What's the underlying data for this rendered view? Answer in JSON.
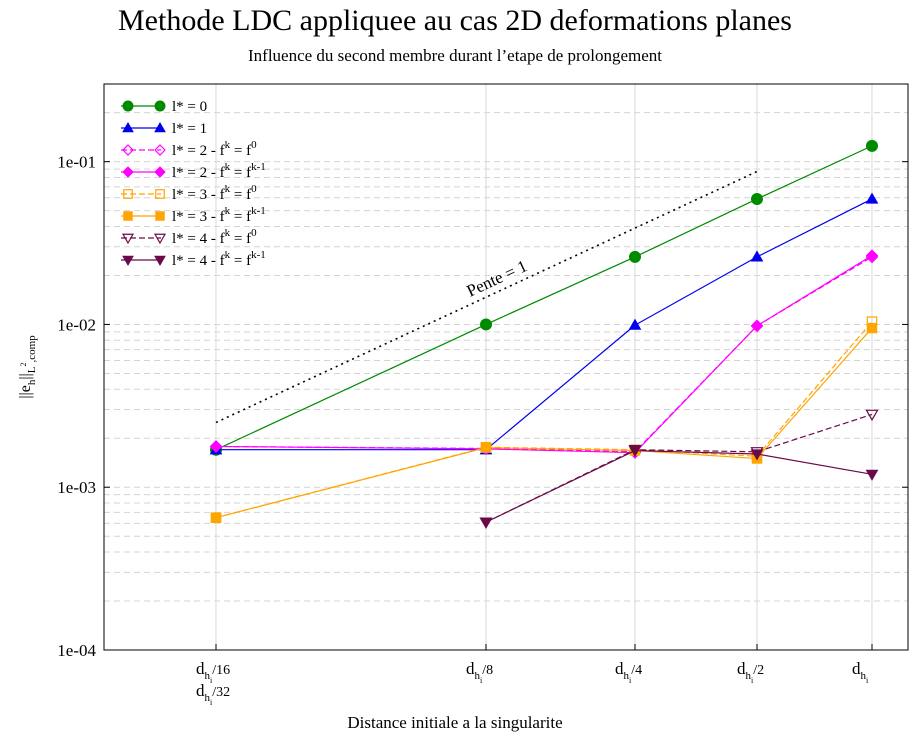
{
  "chart_data": {
    "type": "line",
    "title": "Methode LDC appliquee au cas 2D deformations planes",
    "subtitle": "Influence du second membre durant l’etape de prolongement",
    "xlabel": "Distance initiale a la singularite",
    "ylabel": {
      "base": "||e",
      "sub1": "h",
      "mid": "||",
      "sub2": "L",
      "sup2": "2",
      "sub3": ",comp"
    },
    "yscale": "log",
    "ylim": [
      0.0001,
      0.3
    ],
    "yticks": [
      {
        "value": 0.1,
        "label": "1e-01"
      },
      {
        "value": 0.01,
        "label": "1e-02"
      },
      {
        "value": 0.001,
        "label": "1e-03"
      },
      {
        "value": 0.0001,
        "label": "1e-04"
      }
    ],
    "xticks": [
      {
        "x": 1,
        "lines": [
          {
            "main": "d",
            "sub": "h",
            "subsub": "i",
            "rest": "/16"
          },
          {
            "main": "d",
            "sub": "h",
            "subsub": "i",
            "rest": "/32"
          }
        ]
      },
      {
        "x": 3,
        "lines": [
          {
            "main": "d",
            "sub": "h",
            "subsub": "i",
            "rest": "/8"
          }
        ]
      },
      {
        "x": 4,
        "lines": [
          {
            "main": "d",
            "sub": "h",
            "subsub": "i",
            "rest": "/4"
          }
        ]
      },
      {
        "x": 5,
        "lines": [
          {
            "main": "d",
            "sub": "h",
            "subsub": "i",
            "rest": "/2"
          }
        ]
      },
      {
        "x": 6,
        "lines": [
          {
            "main": "d",
            "sub": "h",
            "subsub": "i",
            "rest": ""
          }
        ]
      }
    ],
    "grid": true,
    "legend_position": "top-left",
    "annotation": {
      "text": "Pente = 1",
      "line": [
        [
          1,
          0.0025
        ],
        [
          5,
          0.087
        ]
      ]
    },
    "series": [
      {
        "name": {
          "base": "l* = 0",
          "sup1": "",
          "mid": "",
          "sup2": ""
        },
        "color": "#008a00",
        "marker": "circle",
        "filled": true,
        "dashed": false,
        "points": [
          [
            1,
            0.0017
          ],
          [
            3,
            0.01
          ],
          [
            4,
            0.026
          ],
          [
            5,
            0.059
          ],
          [
            6,
            0.125
          ]
        ]
      },
      {
        "name": {
          "base": "l* = 1",
          "sup1": "",
          "mid": "",
          "sup2": ""
        },
        "color": "#0000ee",
        "marker": "triangle",
        "filled": true,
        "dashed": false,
        "points": [
          [
            1,
            0.0017
          ],
          [
            3,
            0.0017
          ],
          [
            4,
            0.0099
          ],
          [
            5,
            0.026
          ],
          [
            6,
            0.059
          ]
        ]
      },
      {
        "name": {
          "base": "l* = 2 - f",
          "sup1": "k",
          "mid": " = f",
          "sup2": "0"
        },
        "color": "#ff00ff",
        "marker": "diamond",
        "filled": false,
        "dashed": true,
        "points": [
          [
            1,
            0.00178
          ],
          [
            3,
            0.00173
          ],
          [
            4,
            0.00165
          ],
          [
            5,
            0.0098
          ],
          [
            6,
            0.026
          ]
        ]
      },
      {
        "name": {
          "base": "l* = 2 - f",
          "sup1": "k",
          "mid": " = f",
          "sup2": "k-1"
        },
        "color": "#ff00ff",
        "marker": "diamond",
        "filled": true,
        "dashed": false,
        "points": [
          [
            1,
            0.00178
          ],
          [
            3,
            0.00172
          ],
          [
            4,
            0.00163
          ],
          [
            5,
            0.0098
          ],
          [
            6,
            0.0265
          ]
        ]
      },
      {
        "name": {
          "base": "l* = 3 - f",
          "sup1": "k",
          "mid": " = f",
          "sup2": "0"
        },
        "color": "#ffa500",
        "marker": "square",
        "filled": false,
        "dashed": true,
        "points": [
          [
            1,
            0.00065
          ],
          [
            3,
            0.00176
          ],
          [
            4,
            0.0017
          ],
          [
            5,
            0.00155
          ],
          [
            6,
            0.0104
          ]
        ]
      },
      {
        "name": {
          "base": "l* = 3 - f",
          "sup1": "k",
          "mid": " = f",
          "sup2": "k-1"
        },
        "color": "#ffa500",
        "marker": "square",
        "filled": true,
        "dashed": false,
        "points": [
          [
            1,
            0.00065
          ],
          [
            3,
            0.00175
          ],
          [
            4,
            0.00168
          ],
          [
            5,
            0.0015
          ],
          [
            6,
            0.0095
          ]
        ]
      },
      {
        "name": {
          "base": "l* = 4 - f",
          "sup1": "k",
          "mid": " = f",
          "sup2": "0"
        },
        "color": "#6b0a4a",
        "marker": "triangle-down",
        "filled": false,
        "dashed": true,
        "points": [
          [
            3,
            0.00061
          ],
          [
            4,
            0.0017
          ],
          [
            5,
            0.00165
          ],
          [
            6,
            0.0028
          ]
        ]
      },
      {
        "name": {
          "base": "l* = 4 - f",
          "sup1": "k",
          "mid": " = f",
          "sup2": "k-1"
        },
        "color": "#6b0a4a",
        "marker": "triangle-down",
        "filled": true,
        "dashed": false,
        "points": [
          [
            3,
            0.00061
          ],
          [
            4,
            0.00168
          ],
          [
            5,
            0.0016
          ],
          [
            6,
            0.0012
          ]
        ]
      }
    ]
  }
}
